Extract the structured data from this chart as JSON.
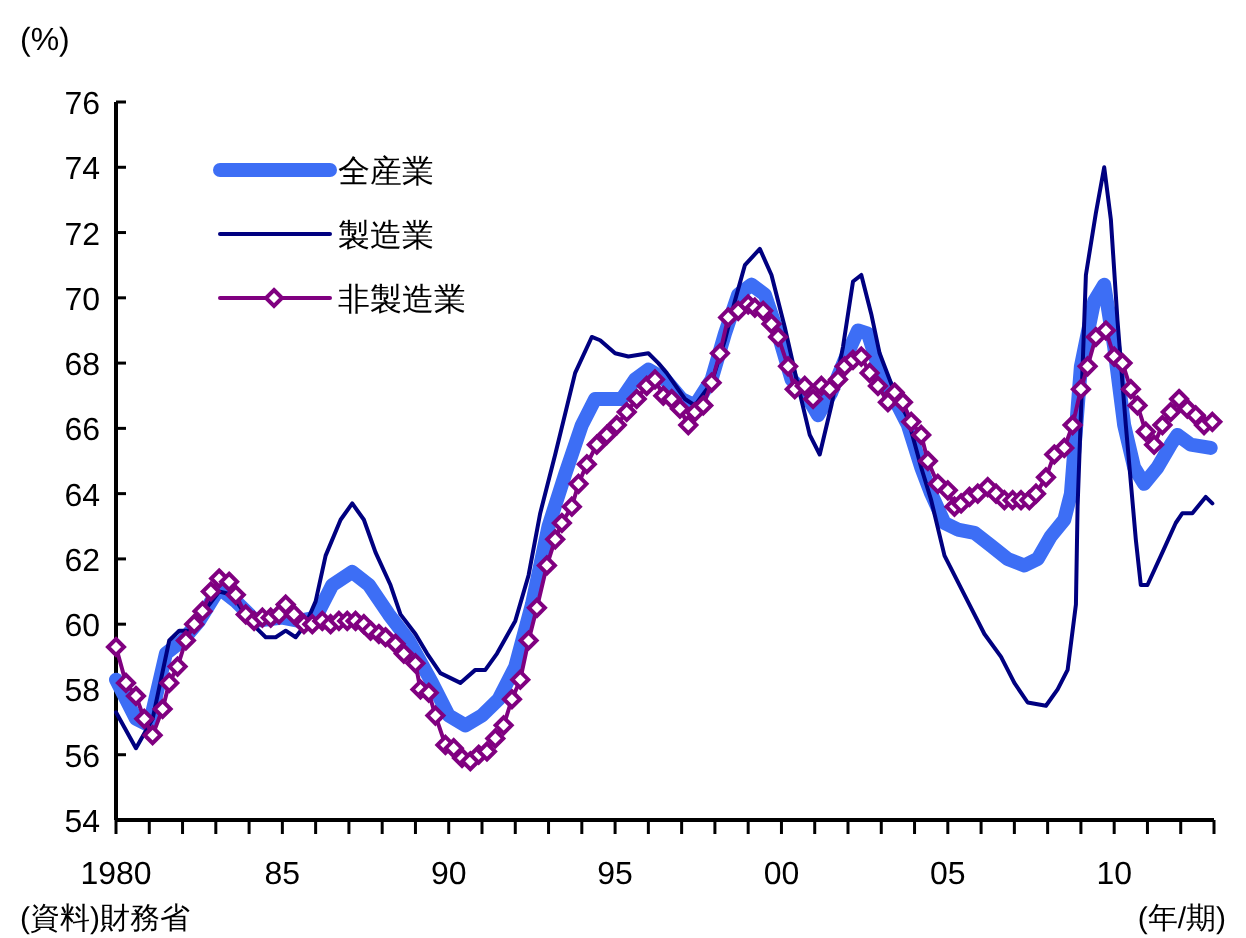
{
  "chart_data": {
    "type": "line",
    "ylabel": "(%)",
    "xlabel": "(年/期)",
    "xlim": [
      1980,
      2013
    ],
    "ylim": [
      54,
      76
    ],
    "yticks": [
      54,
      56,
      58,
      60,
      62,
      64,
      66,
      68,
      70,
      72,
      74,
      76
    ],
    "xticks": [
      1980,
      {
        "value": 1981,
        "label": null
      },
      {
        "value": 1982,
        "label": null
      },
      {
        "value": 1983,
        "label": null
      },
      {
        "value": 1984,
        "label": null
      },
      {
        "value": 1985,
        "label": "85"
      },
      {
        "value": 1986,
        "label": null
      },
      {
        "value": 1987,
        "label": null
      },
      {
        "value": 1988,
        "label": null
      },
      {
        "value": 1989,
        "label": null
      },
      {
        "value": 1990,
        "label": "90"
      },
      {
        "value": 1991,
        "label": null
      },
      {
        "value": 1992,
        "label": null
      },
      {
        "value": 1993,
        "label": null
      },
      {
        "value": 1994,
        "label": null
      },
      {
        "value": 1995,
        "label": "95"
      },
      {
        "value": 1996,
        "label": null
      },
      {
        "value": 1997,
        "label": null
      },
      {
        "value": 1998,
        "label": null
      },
      {
        "value": 1999,
        "label": null
      },
      {
        "value": 2000,
        "label": "00"
      },
      {
        "value": 2001,
        "label": null
      },
      {
        "value": 2002,
        "label": null
      },
      {
        "value": 2003,
        "label": null
      },
      {
        "value": 2004,
        "label": null
      },
      {
        "value": 2005,
        "label": "05"
      },
      {
        "value": 2006,
        "label": null
      },
      {
        "value": 2007,
        "label": null
      },
      {
        "value": 2008,
        "label": null
      },
      {
        "value": 2009,
        "label": null
      },
      {
        "value": 2010,
        "label": "10"
      },
      {
        "value": 2011,
        "label": null
      },
      {
        "value": 2012,
        "label": null
      },
      {
        "value": 2013,
        "label": null
      }
    ],
    "legend": "top left",
    "grid": false,
    "annotations": [
      "(資料)財務省"
    ],
    "series": [
      {
        "name": "全産業",
        "color": "#3d6ef5",
        "marker": "none",
        "x": [
          1980.0,
          1980.6,
          1981.0,
          1981.5,
          1982.0,
          1982.5,
          1983.1,
          1983.6,
          1984.2,
          1985.0,
          1985.5,
          1986.0,
          1986.5,
          1987.1,
          1987.6,
          1988.2,
          1988.8,
          1989.5,
          1990.0,
          1990.5,
          1991.0,
          1991.5,
          1992.0,
          1992.5,
          1993.0,
          1993.5,
          1994.0,
          1994.4,
          1994.8,
          1995.2,
          1995.6,
          1996.0,
          1996.5,
          1997.0,
          1997.4,
          1997.9,
          1998.3,
          1998.7,
          1999.1,
          1999.5,
          1999.9,
          2000.3,
          2000.7,
          2001.1,
          2001.5,
          2001.9,
          2002.3,
          2002.6,
          2003.0,
          2003.4,
          2003.8,
          2004.2,
          2004.5,
          2004.9,
          2005.3,
          2005.8,
          2006.3,
          2006.8,
          2007.3,
          2007.7,
          2008.1,
          2008.5,
          2008.7,
          2009.0,
          2009.4,
          2009.7,
          2010.0,
          2010.3,
          2010.6,
          2010.9,
          2011.3,
          2011.7,
          2011.9,
          2012.3,
          2012.9
        ],
        "values": [
          58.3,
          57.1,
          56.9,
          59.1,
          59.5,
          60.1,
          61.1,
          60.7,
          60.1,
          60.2,
          60.1,
          60.2,
          61.2,
          61.6,
          61.2,
          60.3,
          59.5,
          58.2,
          57.2,
          56.9,
          57.2,
          57.7,
          58.7,
          60.6,
          63.0,
          64.6,
          66.1,
          66.9,
          66.9,
          66.9,
          67.5,
          67.8,
          67.5,
          66.9,
          66.7,
          67.5,
          68.9,
          70.1,
          70.4,
          70.1,
          68.9,
          67.5,
          67.1,
          66.4,
          67.1,
          68.1,
          69.0,
          68.9,
          67.6,
          66.9,
          66.1,
          64.8,
          64.0,
          63.1,
          62.9,
          62.8,
          62.4,
          62.0,
          61.8,
          62.0,
          62.7,
          63.2,
          64.0,
          67.9,
          69.9,
          70.4,
          68.5,
          66.1,
          64.8,
          64.3,
          64.8,
          65.5,
          65.8,
          65.5,
          65.4
        ]
      },
      {
        "name": "製造業",
        "color": "#000080",
        "marker": "none",
        "x": [
          1980.0,
          1980.6,
          1981.1,
          1981.6,
          1981.9,
          1982.2,
          1982.5,
          1983.1,
          1983.5,
          1984.0,
          1984.5,
          1984.8,
          1985.1,
          1985.4,
          1985.7,
          1986.0,
          1986.3,
          1986.75,
          1987.1,
          1987.45,
          1987.8,
          1988.25,
          1988.55,
          1989.0,
          1989.35,
          1989.75,
          1990.35,
          1990.8,
          1991.1,
          1991.45,
          1992.0,
          1992.4,
          1992.75,
          1993.2,
          1993.8,
          1994.3,
          1994.55,
          1995.0,
          1995.4,
          1996.0,
          1996.3,
          1996.55,
          1997.1,
          1997.4,
          1997.9,
          1998.3,
          1998.6,
          1998.9,
          1999.35,
          1999.7,
          2000.1,
          2000.5,
          2000.85,
          2001.15,
          2001.5,
          2001.85,
          2002.15,
          2002.4,
          2002.7,
          2002.95,
          2003.4,
          2003.8,
          2004.2,
          2004.5,
          2004.9,
          2005.5,
          2006.1,
          2006.6,
          2007.0,
          2007.4,
          2007.95,
          2008.3,
          2008.6,
          2008.85,
          2008.9,
          2009.15,
          2009.45,
          2009.7,
          2009.9,
          2010.1,
          2010.35,
          2010.65,
          2010.8,
          2011.0,
          2011.45,
          2011.85,
          2012.05,
          2012.35,
          2012.75,
          2012.95
        ],
        "values": [
          57.3,
          56.2,
          57.1,
          59.5,
          59.8,
          59.8,
          60.2,
          61.0,
          60.9,
          60.1,
          59.6,
          59.6,
          59.8,
          59.6,
          60.0,
          60.7,
          62.1,
          63.2,
          63.7,
          63.2,
          62.2,
          61.2,
          60.3,
          59.7,
          59.1,
          58.5,
          58.2,
          58.6,
          58.6,
          59.1,
          60.1,
          61.5,
          63.4,
          65.2,
          67.7,
          68.8,
          68.7,
          68.3,
          68.2,
          68.3,
          68.0,
          67.7,
          66.9,
          66.7,
          67.4,
          68.7,
          69.9,
          71.0,
          71.5,
          70.7,
          69.1,
          67.3,
          65.8,
          65.2,
          66.7,
          68.5,
          70.5,
          70.7,
          69.5,
          68.3,
          67.1,
          66.3,
          64.8,
          63.8,
          62.1,
          60.9,
          59.7,
          59.0,
          58.2,
          57.6,
          57.5,
          58.0,
          58.6,
          60.6,
          63.6,
          70.7,
          72.6,
          74.0,
          72.4,
          69.3,
          66.1,
          62.6,
          61.2,
          61.2,
          62.2,
          63.1,
          63.4,
          63.4,
          63.9,
          63.7
        ]
      },
      {
        "name": "非製造業",
        "color": "#800080",
        "marker": "diamond",
        "x": [
          1980.0,
          1980.3,
          1980.6,
          1980.85,
          1981.1,
          1981.4,
          1981.6,
          1981.85,
          1982.1,
          1982.35,
          1982.6,
          1982.85,
          1983.1,
          1983.4,
          1983.6,
          1983.9,
          1984.15,
          1984.4,
          1984.65,
          1984.9,
          1985.1,
          1985.35,
          1985.65,
          1985.9,
          1986.2,
          1986.45,
          1986.7,
          1986.95,
          1987.2,
          1987.45,
          1987.65,
          1987.9,
          1988.1,
          1988.4,
          1988.65,
          1989.0,
          1989.15,
          1989.4,
          1989.6,
          1989.9,
          1990.15,
          1990.4,
          1990.65,
          1990.9,
          1991.15,
          1991.4,
          1991.65,
          1991.9,
          1992.15,
          1992.4,
          1992.65,
          1992.95,
          1993.2,
          1993.4,
          1993.7,
          1993.9,
          1994.15,
          1994.45,
          1994.75,
          1995.05,
          1995.35,
          1995.65,
          1995.95,
          1996.2,
          1996.45,
          1996.7,
          1996.95,
          1997.2,
          1997.4,
          1997.65,
          1997.9,
          1998.15,
          1998.4,
          1998.7,
          1999.0,
          1999.2,
          1999.45,
          1999.7,
          1999.9,
          2000.2,
          2000.4,
          2000.7,
          2000.95,
          2001.2,
          2001.45,
          2001.7,
          2001.9,
          2002.15,
          2002.4,
          2002.65,
          2002.9,
          2003.2,
          2003.4,
          2003.65,
          2003.9,
          2004.2,
          2004.4,
          2004.7,
          2005.0,
          2005.2,
          2005.4,
          2005.65,
          2005.9,
          2006.2,
          2006.45,
          2006.7,
          2006.95,
          2007.2,
          2007.45,
          2007.65,
          2007.95,
          2008.2,
          2008.5,
          2008.75,
          2009.0,
          2009.2,
          2009.45,
          2009.75,
          2010.0,
          2010.25,
          2010.5,
          2010.7,
          2010.95,
          2011.2,
          2011.45,
          2011.7,
          2011.95,
          2012.2,
          2012.45,
          2012.7,
          2012.95
        ],
        "values": [
          59.3,
          58.2,
          57.8,
          57.1,
          56.6,
          57.4,
          58.2,
          58.7,
          59.5,
          60.0,
          60.4,
          61.0,
          61.4,
          61.3,
          60.9,
          60.3,
          60.1,
          60.2,
          60.2,
          60.3,
          60.6,
          60.3,
          60.0,
          60.0,
          60.1,
          60.0,
          60.1,
          60.1,
          60.1,
          60.0,
          59.8,
          59.7,
          59.6,
          59.4,
          59.1,
          58.8,
          58.0,
          57.9,
          57.2,
          56.3,
          56.2,
          55.9,
          55.8,
          56.0,
          56.1,
          56.5,
          56.9,
          57.7,
          58.3,
          59.5,
          60.5,
          61.8,
          62.6,
          63.1,
          63.6,
          64.3,
          64.9,
          65.5,
          65.8,
          66.1,
          66.5,
          66.9,
          67.3,
          67.5,
          67.0,
          66.9,
          66.6,
          66.1,
          66.5,
          66.7,
          67.4,
          68.3,
          69.4,
          69.6,
          69.8,
          69.7,
          69.6,
          69.2,
          68.8,
          67.9,
          67.2,
          67.3,
          66.9,
          67.3,
          67.2,
          67.5,
          67.9,
          68.1,
          68.2,
          67.7,
          67.3,
          66.8,
          67.1,
          66.8,
          66.2,
          65.8,
          65.0,
          64.3,
          64.1,
          63.6,
          63.7,
          63.9,
          64.0,
          64.2,
          64.0,
          63.8,
          63.8,
          63.8,
          63.8,
          64.0,
          64.5,
          65.2,
          65.4,
          66.1,
          67.2,
          67.9,
          68.8,
          69.0,
          68.2,
          68.0,
          67.2,
          66.7,
          65.9,
          65.5,
          66.1,
          66.5,
          66.9,
          66.6,
          66.4,
          66.1,
          66.2
        ]
      }
    ]
  }
}
